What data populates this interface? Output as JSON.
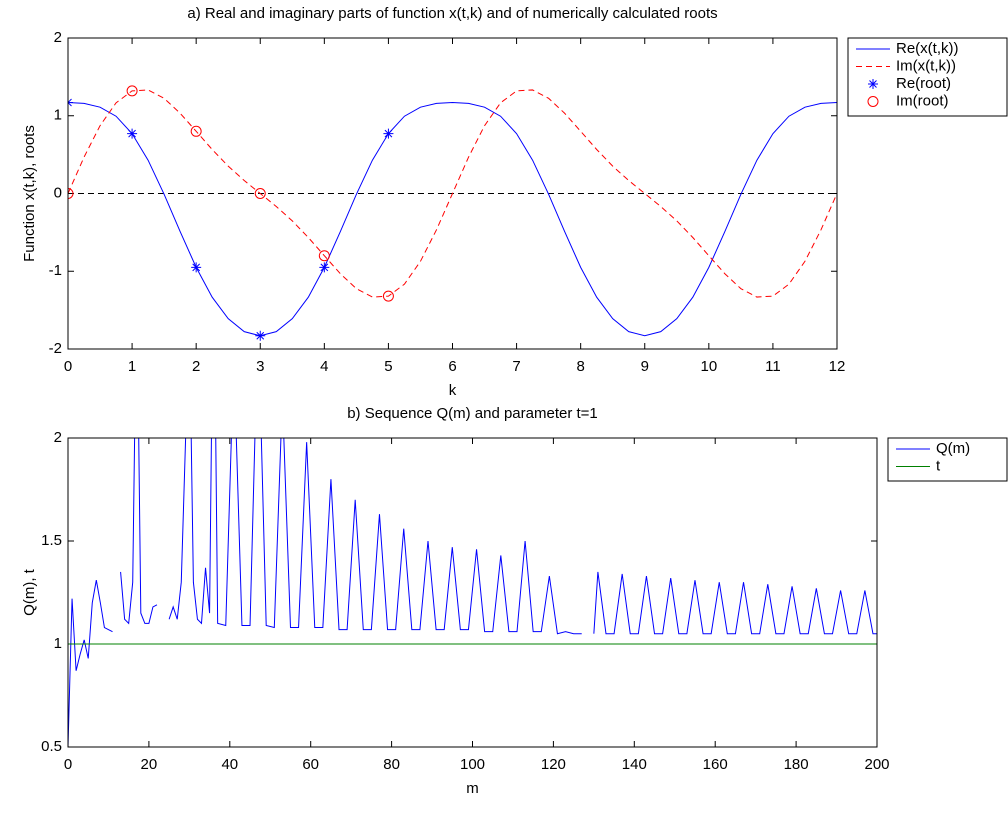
{
  "chart_data": [
    {
      "type": "line",
      "title": "a) Real and imaginary parts of function x(t,k) and of numerically calculated roots",
      "xlabel": "k",
      "ylabel": "Function x(t,k), roots",
      "xlim": [
        0,
        12
      ],
      "ylim": [
        -2,
        2
      ],
      "xticks": [
        0,
        1,
        2,
        3,
        4,
        5,
        6,
        7,
        8,
        9,
        10,
        11,
        12
      ],
      "yticks": [
        -2,
        -1,
        0,
        1,
        2
      ],
      "reference_line": 0,
      "grid": false,
      "legend": "outside-right",
      "series": [
        {
          "name": "Re(x(t,k))",
          "color": "#0000ff",
          "line_style": "-",
          "marker": "none",
          "x": [
            0,
            0.25,
            0.5,
            0.75,
            1,
            1.25,
            1.5,
            1.75,
            2,
            2.25,
            2.5,
            2.75,
            3,
            3.25,
            3.5,
            3.75,
            4,
            4.25,
            4.5,
            4.75,
            5,
            5.25,
            5.5,
            5.75,
            6,
            6.25,
            6.5,
            6.75,
            7,
            7.25,
            7.5,
            7.75,
            8,
            8.25,
            8.5,
            8.75,
            9,
            9.25,
            9.5,
            9.75,
            10,
            10.25,
            10.5,
            10.75,
            11,
            11.25,
            11.5,
            11.75,
            12
          ],
          "values": [
            1.17,
            1.159,
            1.11,
            0.994,
            0.77,
            0.428,
            -0.01,
            -0.49,
            -0.95,
            -1.334,
            -1.61,
            -1.777,
            -1.83,
            -1.777,
            -1.61,
            -1.334,
            -0.95,
            -0.49,
            -0.01,
            0.428,
            0.77,
            0.994,
            1.11,
            1.159,
            1.17,
            1.159,
            1.11,
            0.994,
            0.77,
            0.428,
            -0.01,
            -0.49,
            -0.95,
            -1.334,
            -1.61,
            -1.777,
            -1.83,
            -1.777,
            -1.61,
            -1.334,
            -0.95,
            -0.49,
            -0.01,
            0.428,
            0.77,
            0.994,
            1.11,
            1.159,
            1.17
          ]
        },
        {
          "name": "Im(x(t,k))",
          "color": "#ff0000",
          "line_style": "--",
          "marker": "none",
          "x": [
            0,
            0.25,
            0.5,
            0.75,
            1,
            1.25,
            1.5,
            1.75,
            2,
            2.25,
            2.5,
            2.75,
            3,
            3.25,
            3.5,
            3.75,
            4,
            4.25,
            4.5,
            4.75,
            5,
            5.25,
            5.5,
            5.75,
            6,
            6.25,
            6.5,
            6.75,
            7,
            7.25,
            7.5,
            7.75,
            8,
            8.25,
            8.5,
            8.75,
            9,
            9.25,
            9.5,
            9.75,
            10,
            10.25,
            10.5,
            10.75,
            11,
            11.25,
            11.5,
            11.75,
            12
          ],
          "values": [
            0,
            0.467,
            0.872,
            1.166,
            1.32,
            1.332,
            1.224,
            1.032,
            0.8,
            0.566,
            0.352,
            0.167,
            0,
            -0.167,
            -0.352,
            -0.566,
            -0.8,
            -1.032,
            -1.224,
            -1.332,
            -1.32,
            -1.166,
            -0.872,
            -0.467,
            0,
            0.467,
            0.872,
            1.166,
            1.32,
            1.332,
            1.224,
            1.032,
            0.8,
            0.566,
            0.352,
            0.167,
            0,
            -0.167,
            -0.352,
            -0.566,
            -0.8,
            -1.032,
            -1.224,
            -1.332,
            -1.32,
            -1.166,
            -0.872,
            -0.467,
            0
          ]
        },
        {
          "name": "Re(root)",
          "color": "#0000ff",
          "line_style": "none",
          "marker": "*",
          "x": [
            0,
            1,
            2,
            3,
            4,
            5
          ],
          "values": [
            1.17,
            0.77,
            -0.95,
            -1.83,
            -0.95,
            0.77
          ]
        },
        {
          "name": "Im(root)",
          "color": "#ff0000",
          "line_style": "none",
          "marker": "o",
          "x": [
            0,
            1,
            2,
            3,
            4,
            5
          ],
          "values": [
            0,
            1.32,
            0.8,
            0,
            -0.8,
            -1.32
          ]
        }
      ]
    },
    {
      "type": "line",
      "title": "b) Sequence Q(m) and parameter t=1",
      "xlabel": "m",
      "ylabel": "Q(m), t",
      "xlim": [
        0,
        200
      ],
      "ylim": [
        0.5,
        2
      ],
      "xticks": [
        0,
        20,
        40,
        60,
        80,
        100,
        120,
        140,
        160,
        180,
        200
      ],
      "yticks": [
        0.5,
        1,
        1.5,
        2
      ],
      "grid": false,
      "legend": "outside-right",
      "series": [
        {
          "name": "Q(m)",
          "color": "#0000ff",
          "line_style": "-",
          "marker": "none",
          "x": [
            0,
            1,
            2,
            3,
            4,
            5,
            6,
            7,
            8,
            9,
            11,
            12,
            13,
            14,
            15,
            16,
            17,
            18,
            19,
            20,
            21,
            22,
            23,
            25,
            26,
            27,
            28,
            30,
            31,
            32,
            33,
            34,
            35,
            36,
            37,
            39,
            41,
            43,
            45,
            47,
            49,
            51,
            53,
            55,
            57,
            59,
            61,
            63,
            65,
            67,
            69,
            71,
            73,
            75,
            77,
            79,
            81,
            83,
            85,
            87,
            89,
            91,
            93,
            95,
            97,
            99,
            101,
            103,
            105,
            107,
            109,
            111,
            113,
            115,
            117,
            119,
            121,
            123,
            125,
            127,
            128,
            130,
            131,
            133,
            135,
            137,
            139,
            141,
            143,
            145,
            147,
            149,
            151,
            153,
            155,
            157,
            159,
            161,
            163,
            165,
            167,
            169,
            171,
            173,
            175,
            177,
            179,
            181,
            183,
            185,
            187,
            189,
            191,
            193,
            195,
            197,
            199,
            200
          ],
          "values": [
            0.5,
            1.22,
            0.87,
            0.95,
            1.02,
            0.93,
            1.2,
            1.31,
            1.2,
            1.08,
            1.06,
            null,
            1.35,
            1.12,
            1.1,
            1.3,
            2.8,
            1.15,
            1.1,
            1.1,
            1.18,
            1.19,
            null,
            1.12,
            1.18,
            1.12,
            1.3,
            2.6,
            1.3,
            1.12,
            1.1,
            1.37,
            1.15,
            3.0,
            1.1,
            1.09,
            2.4,
            1.09,
            1.09,
            2.6,
            1.09,
            1.08,
            2.2,
            1.08,
            1.08,
            1.98,
            1.08,
            1.08,
            1.8,
            1.07,
            1.07,
            1.7,
            1.07,
            1.07,
            1.63,
            1.07,
            1.07,
            1.56,
            1.07,
            1.07,
            1.5,
            1.07,
            1.07,
            1.47,
            1.07,
            1.07,
            1.46,
            1.06,
            1.06,
            1.43,
            1.06,
            1.06,
            1.5,
            1.06,
            1.06,
            1.33,
            1.05,
            1.06,
            1.05,
            1.05,
            null,
            1.05,
            1.35,
            1.05,
            1.05,
            1.34,
            1.05,
            1.05,
            1.33,
            1.05,
            1.05,
            1.32,
            1.05,
            1.05,
            1.31,
            1.05,
            1.05,
            1.3,
            1.05,
            1.05,
            1.3,
            1.05,
            1.05,
            1.29,
            1.05,
            1.05,
            1.28,
            1.05,
            1.05,
            1.27,
            1.05,
            1.05,
            1.26,
            1.05,
            1.05,
            1.26,
            1.05,
            1.05
          ]
        },
        {
          "name": "t",
          "color": "#008000",
          "line_style": "-",
          "marker": "none",
          "x": [
            0,
            200
          ],
          "values": [
            1,
            1
          ]
        }
      ]
    }
  ]
}
